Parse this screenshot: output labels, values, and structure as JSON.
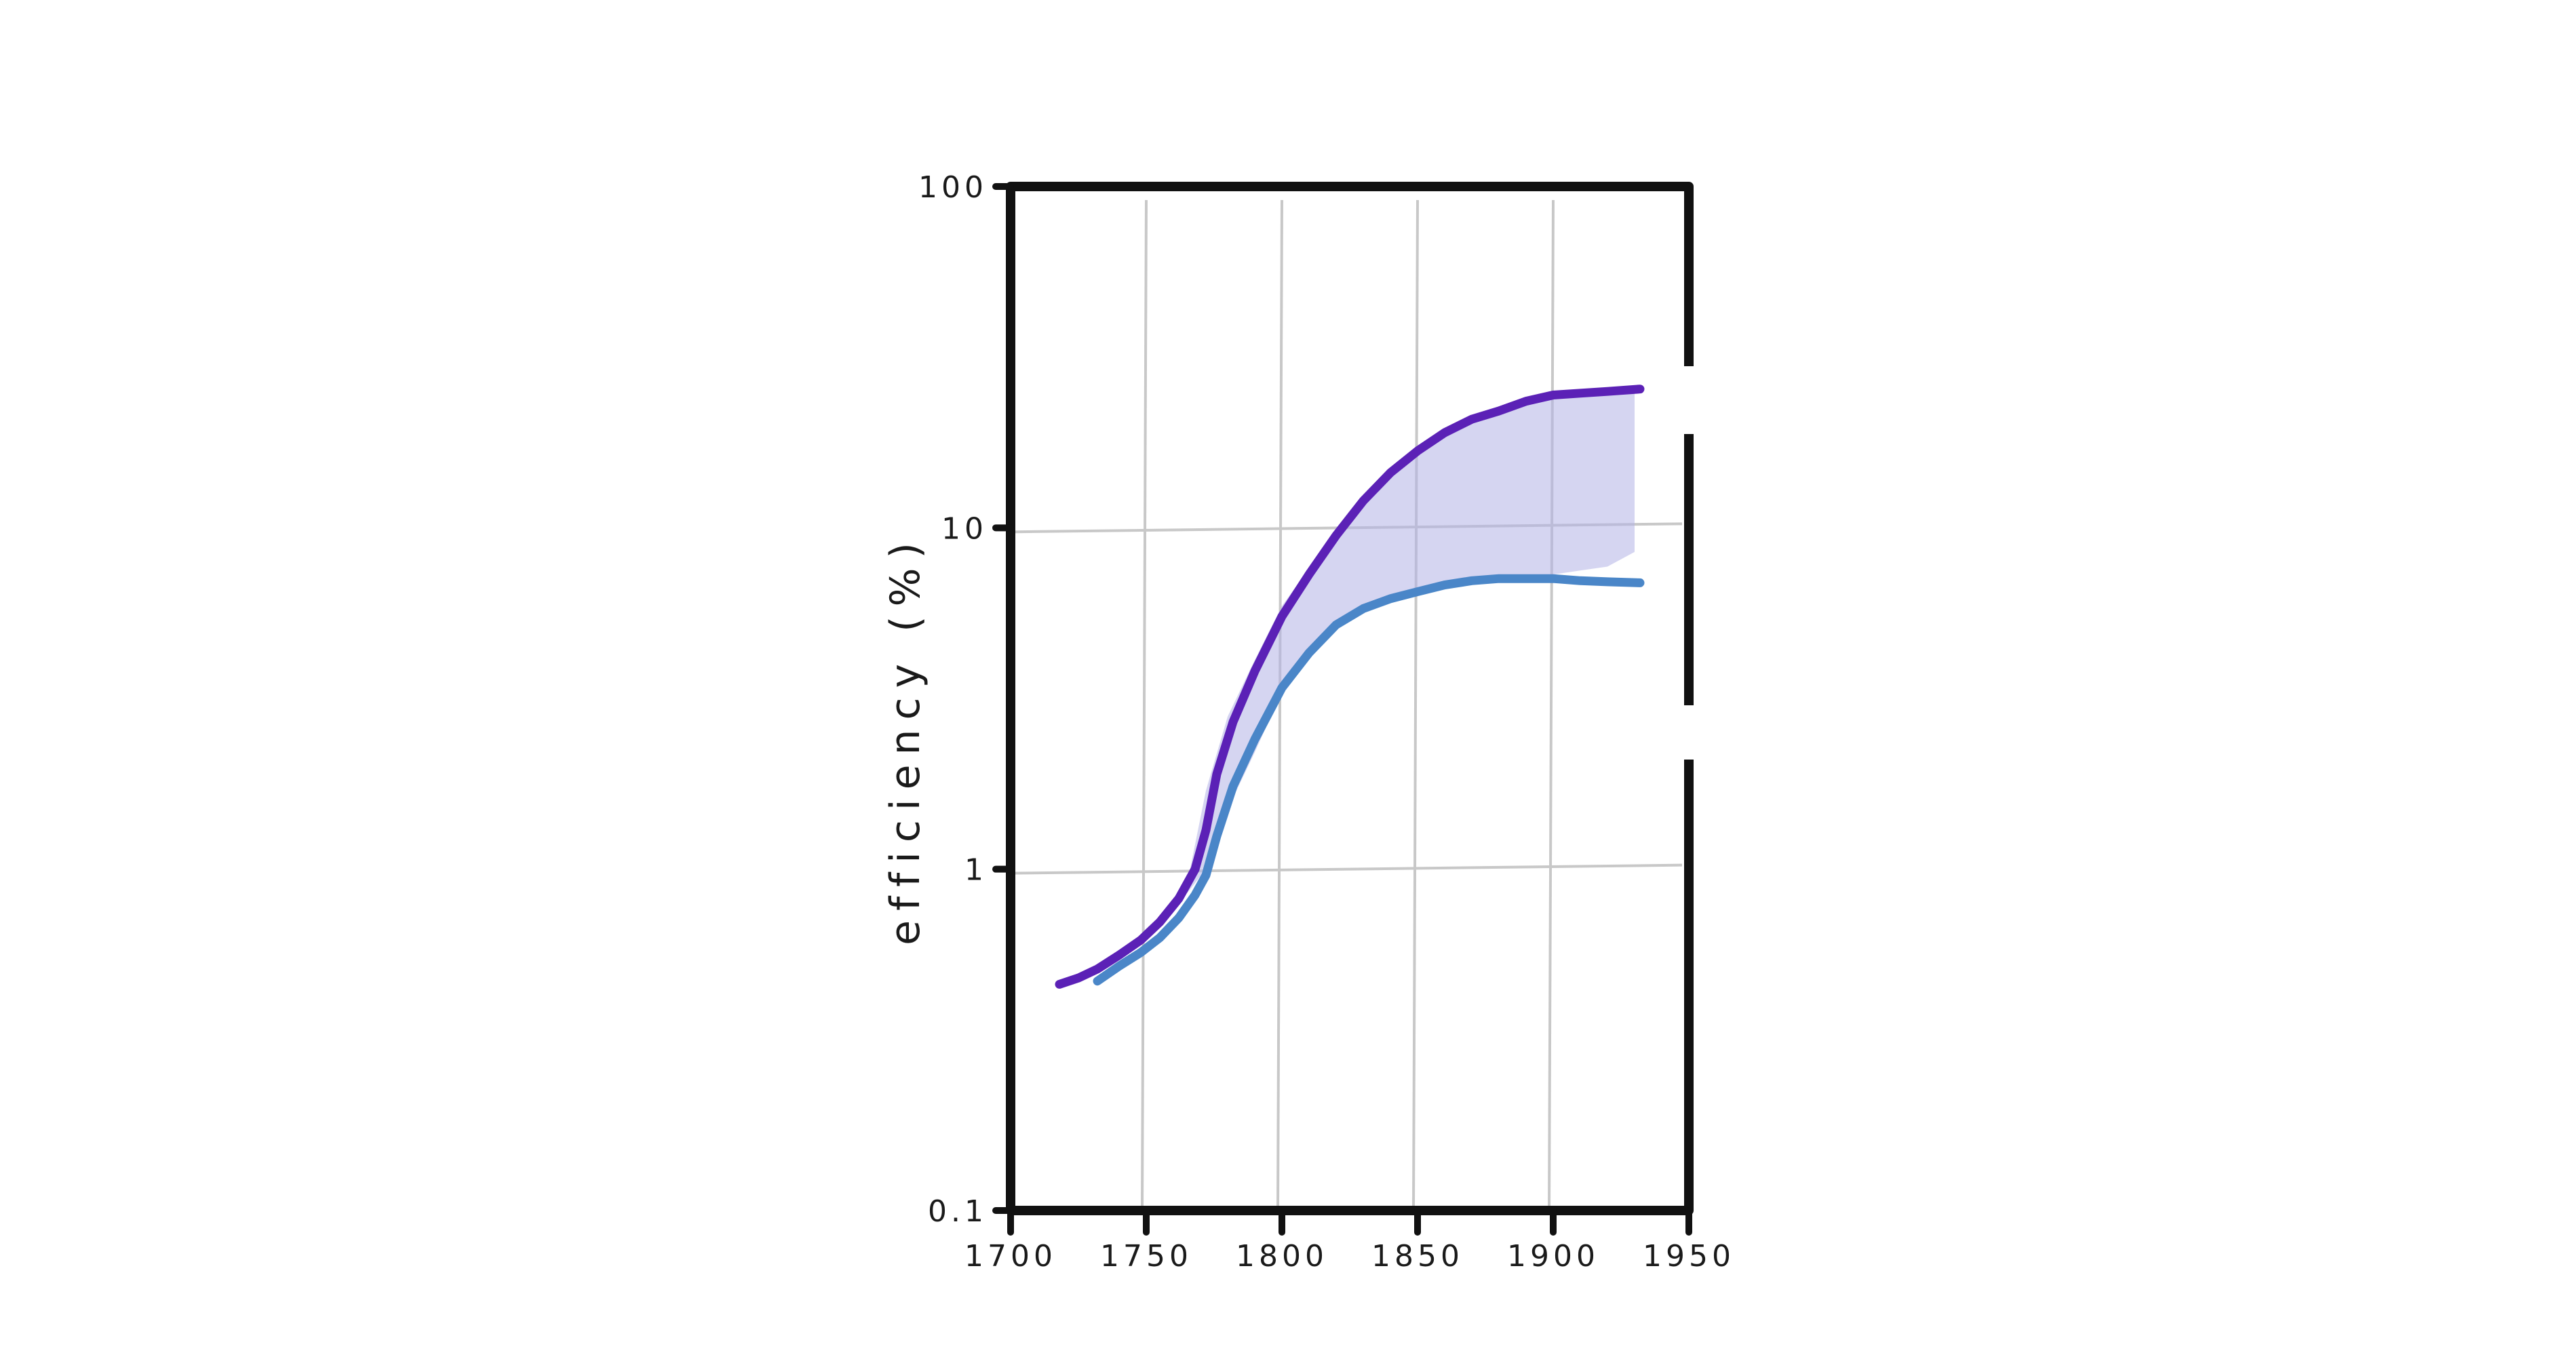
{
  "chart_data": {
    "type": "line",
    "title": "",
    "xlabel": "",
    "ylabel": "efficiency (%)",
    "x_scale": "linear",
    "y_scale": "log",
    "xlim": [
      1700,
      1950
    ],
    "ylim": [
      0.1,
      100
    ],
    "x_ticks": [
      "1700",
      "1750",
      "1800",
      "1850",
      "1900",
      "1950"
    ],
    "y_ticks": [
      "100",
      "10",
      "1",
      "0.1"
    ],
    "grid": true,
    "legend": "none",
    "colors": {
      "upper": "#5b21b6",
      "lower": "#4a86c8",
      "band": "#b3b3e6",
      "grid": "#c8c8c8",
      "frame": "#111111"
    },
    "series": [
      {
        "x": [
          1718,
          1725,
          1732,
          1740,
          1748,
          1755,
          1762,
          1768,
          1772,
          1776,
          1782,
          1790,
          1800,
          1810,
          1820,
          1830,
          1840,
          1850,
          1860,
          1870,
          1880,
          1890,
          1900,
          1910,
          1920,
          1932
        ],
        "y": [
          0.46,
          0.48,
          0.51,
          0.56,
          0.62,
          0.7,
          0.82,
          1.0,
          1.3,
          1.9,
          2.7,
          3.8,
          5.5,
          7.3,
          9.5,
          12.0,
          14.5,
          16.8,
          19.0,
          20.8,
          22.0,
          23.5,
          24.5,
          24.8,
          25.1,
          25.5
        ]
      },
      {
        "x": [
          1732,
          1740,
          1748,
          1755,
          1762,
          1768,
          1772,
          1776,
          1782,
          1790,
          1800,
          1810,
          1820,
          1830,
          1840,
          1850,
          1860,
          1870,
          1880,
          1890,
          1900,
          1910,
          1920,
          1932
        ],
        "y": [
          0.47,
          0.52,
          0.57,
          0.63,
          0.72,
          0.84,
          0.96,
          1.25,
          1.75,
          2.4,
          3.4,
          4.3,
          5.2,
          5.8,
          6.2,
          6.5,
          6.8,
          7.0,
          7.1,
          7.1,
          7.1,
          7.0,
          6.95,
          6.9
        ]
      }
    ],
    "band": {
      "x": [
        1765,
        1772,
        1780,
        1790,
        1800,
        1810,
        1820,
        1830,
        1840,
        1850,
        1860,
        1870,
        1880,
        1890,
        1900,
        1910,
        1920,
        1930
      ],
      "y_low": [
        0.85,
        1.0,
        1.5,
        2.2,
        3.3,
        4.2,
        5.1,
        5.8,
        6.2,
        6.5,
        6.8,
        7.0,
        7.1,
        7.2,
        7.3,
        7.5,
        7.7,
        8.5
      ],
      "y_high": [
        0.9,
        1.7,
        2.8,
        4.1,
        5.9,
        7.6,
        9.8,
        12.4,
        15.0,
        17.4,
        19.6,
        21.4,
        22.6,
        23.7,
        24.6,
        25.2,
        25.6,
        25.8
      ]
    }
  }
}
